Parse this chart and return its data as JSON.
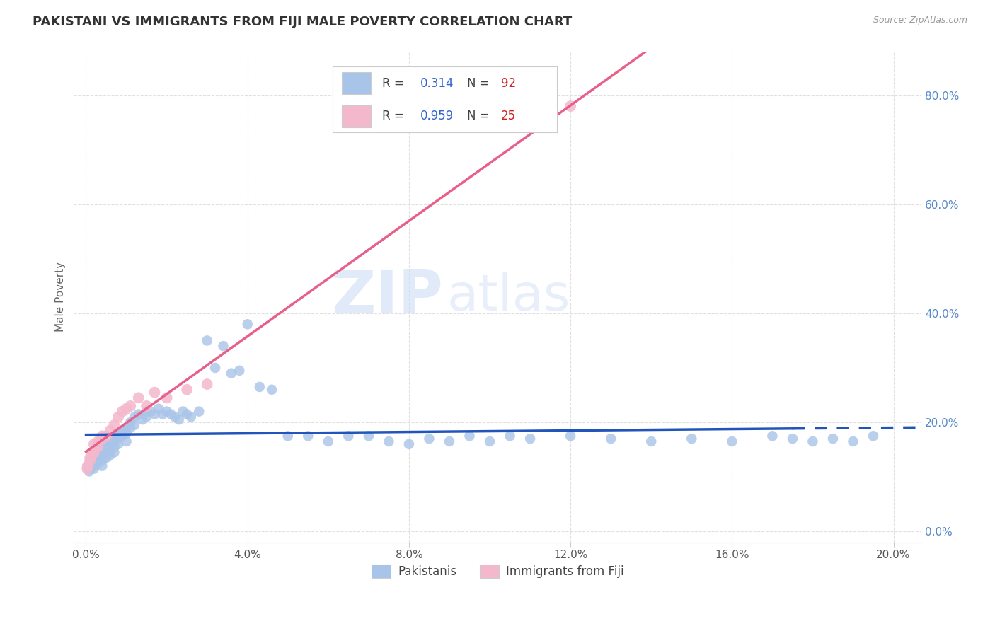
{
  "title": "PAKISTANI VS IMMIGRANTS FROM FIJI MALE POVERTY CORRELATION CHART",
  "source": "Source: ZipAtlas.com",
  "ylabel": "Male Poverty",
  "legend_labels": [
    "Pakistanis",
    "Immigrants from Fiji"
  ],
  "r_pakistani": 0.314,
  "n_pakistani": 92,
  "r_fiji": 0.959,
  "n_fiji": 25,
  "blue_scatter_color": "#a8c4e8",
  "blue_line_color": "#2255bb",
  "pink_scatter_color": "#f4b8cc",
  "pink_line_color": "#e8608a",
  "watermark_zip": "ZIP",
  "watermark_atlas": "atlas",
  "background_color": "#ffffff",
  "grid_color": "#e0e0e0",
  "x_ticks": [
    0.0,
    0.04,
    0.08,
    0.12,
    0.16,
    0.2
  ],
  "x_tick_labels": [
    "0.0%",
    "4.0%",
    "8.0%",
    "12.0%",
    "16.0%",
    "20.0%"
  ],
  "y_ticks": [
    0.0,
    0.2,
    0.4,
    0.6,
    0.8
  ],
  "y_tick_labels": [
    "0.0%",
    "20.0%",
    "40.0%",
    "60.0%",
    "80.0%"
  ],
  "xlim": [
    -0.003,
    0.207
  ],
  "ylim": [
    -0.02,
    0.88
  ],
  "pak_x": [
    0.0003,
    0.0005,
    0.0008,
    0.001,
    0.001,
    0.001,
    0.0015,
    0.0015,
    0.002,
    0.002,
    0.002,
    0.002,
    0.0025,
    0.003,
    0.003,
    0.003,
    0.003,
    0.004,
    0.004,
    0.004,
    0.004,
    0.005,
    0.005,
    0.005,
    0.005,
    0.006,
    0.006,
    0.006,
    0.007,
    0.007,
    0.007,
    0.007,
    0.008,
    0.008,
    0.008,
    0.009,
    0.009,
    0.01,
    0.01,
    0.01,
    0.011,
    0.011,
    0.012,
    0.012,
    0.013,
    0.014,
    0.015,
    0.015,
    0.016,
    0.017,
    0.018,
    0.019,
    0.02,
    0.021,
    0.022,
    0.023,
    0.024,
    0.025,
    0.026,
    0.028,
    0.03,
    0.032,
    0.034,
    0.036,
    0.038,
    0.04,
    0.043,
    0.046,
    0.05,
    0.055,
    0.06,
    0.065,
    0.07,
    0.075,
    0.08,
    0.085,
    0.09,
    0.095,
    0.1,
    0.105,
    0.11,
    0.12,
    0.13,
    0.14,
    0.15,
    0.16,
    0.17,
    0.175,
    0.18,
    0.185,
    0.19,
    0.195
  ],
  "pak_y": [
    0.12,
    0.115,
    0.11,
    0.13,
    0.125,
    0.115,
    0.125,
    0.12,
    0.13,
    0.125,
    0.115,
    0.12,
    0.13,
    0.14,
    0.135,
    0.125,
    0.14,
    0.15,
    0.14,
    0.13,
    0.12,
    0.16,
    0.155,
    0.145,
    0.135,
    0.16,
    0.15,
    0.14,
    0.175,
    0.165,
    0.155,
    0.145,
    0.18,
    0.17,
    0.16,
    0.185,
    0.175,
    0.19,
    0.18,
    0.165,
    0.2,
    0.19,
    0.21,
    0.195,
    0.215,
    0.205,
    0.22,
    0.21,
    0.22,
    0.215,
    0.225,
    0.215,
    0.22,
    0.215,
    0.21,
    0.205,
    0.22,
    0.215,
    0.21,
    0.22,
    0.35,
    0.3,
    0.34,
    0.29,
    0.295,
    0.38,
    0.265,
    0.26,
    0.175,
    0.175,
    0.165,
    0.175,
    0.175,
    0.165,
    0.16,
    0.17,
    0.165,
    0.175,
    0.165,
    0.175,
    0.17,
    0.175,
    0.17,
    0.165,
    0.17,
    0.165,
    0.175,
    0.17,
    0.165,
    0.17,
    0.165,
    0.175
  ],
  "fiji_x": [
    0.0003,
    0.0005,
    0.001,
    0.001,
    0.0015,
    0.002,
    0.002,
    0.003,
    0.003,
    0.004,
    0.004,
    0.005,
    0.006,
    0.007,
    0.008,
    0.009,
    0.01,
    0.011,
    0.013,
    0.015,
    0.017,
    0.02,
    0.025,
    0.03,
    0.12
  ],
  "fiji_y": [
    0.115,
    0.12,
    0.13,
    0.135,
    0.14,
    0.145,
    0.16,
    0.155,
    0.165,
    0.17,
    0.175,
    0.175,
    0.185,
    0.195,
    0.21,
    0.22,
    0.225,
    0.23,
    0.245,
    0.23,
    0.255,
    0.245,
    0.26,
    0.27,
    0.78
  ]
}
